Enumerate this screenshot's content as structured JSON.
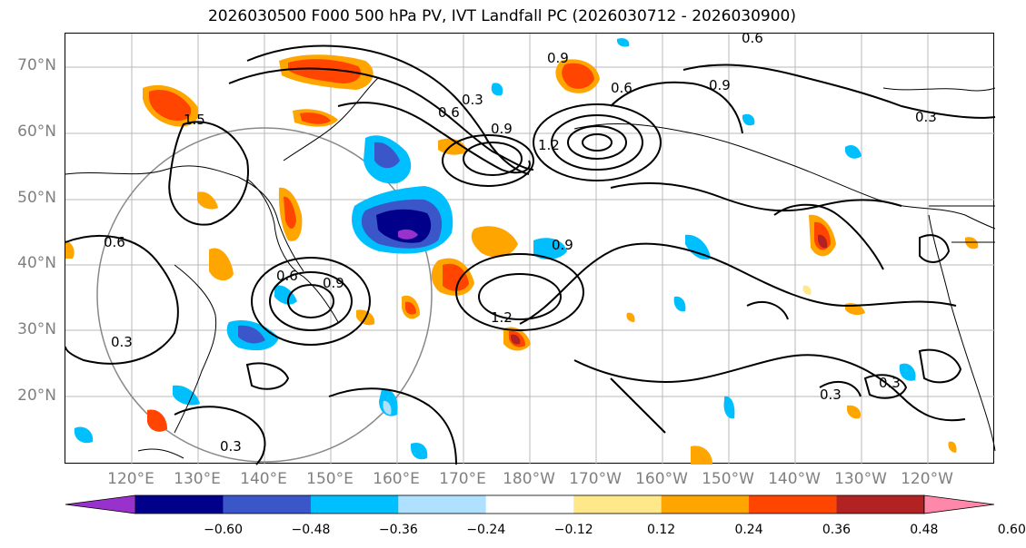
{
  "title": "2026030500 F000 500 hPa PV, IVT Landfall PC (2026030712 - 2026030900)",
  "lat_labels": [
    "70°N",
    "60°N",
    "50°N",
    "40°N",
    "30°N",
    "20°N"
  ],
  "lon_labels": [
    "120°E",
    "130°E",
    "140°E",
    "150°E",
    "160°E",
    "170°E",
    "180°W",
    "170°W",
    "160°W",
    "150°W",
    "140°W",
    "130°W",
    "120°W"
  ],
  "contour_labels": [
    "0.6",
    "0.9",
    "0.3",
    "0.9",
    "0.6",
    "0.9",
    "1.5",
    "1.2",
    "0.3",
    "0.6",
    "0.9",
    "1.2",
    "0.9",
    "0.6",
    "0.3",
    "0.3",
    "0.3",
    "0.3",
    "0.6"
  ],
  "colorbar": {
    "ticks": [
      "−0.60",
      "−0.48",
      "−0.36",
      "−0.24",
      "−0.12",
      "0.12",
      "0.24",
      "0.36",
      "0.48",
      "0.60"
    ],
    "colors": [
      "#9932CC",
      "#00008B",
      "#3A56C9",
      "#00BFFF",
      "#B0E0FF",
      "#FFFFFF",
      "#FFE88A",
      "#FFA500",
      "#FF4500",
      "#B22222",
      "#FF88AA"
    ]
  }
}
